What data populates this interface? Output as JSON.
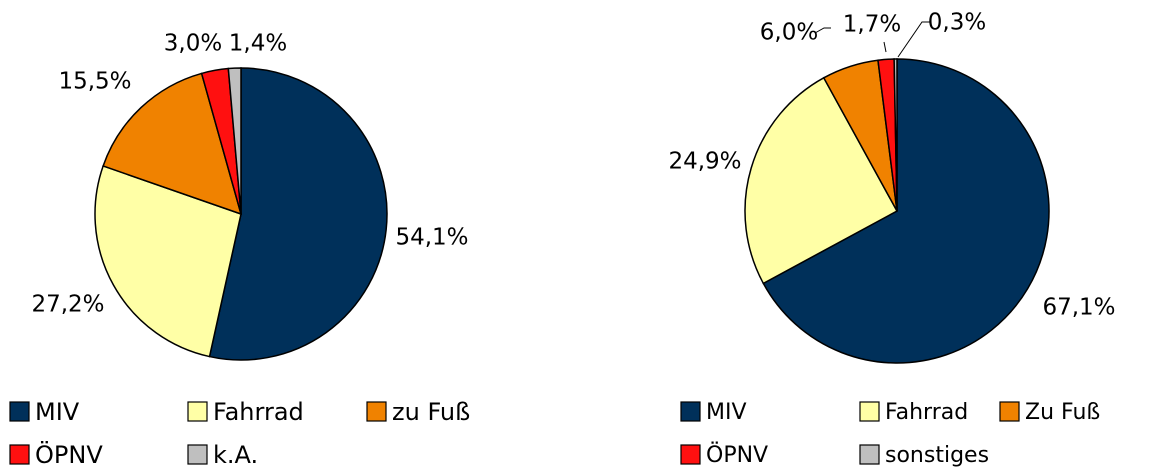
{
  "chart_data": [
    {
      "type": "pie",
      "categories": [
        "MIV",
        "Fahrrad",
        "zu Fuß",
        "ÖPNV",
        "k.A."
      ],
      "values": [
        54.1,
        27.2,
        15.5,
        3.0,
        1.4
      ],
      "value_labels": [
        "54,1%",
        "27,2%",
        "15,5%",
        "3,0%",
        "1,4%"
      ],
      "colors": [
        "#00305a",
        "#ffffa6",
        "#f08200",
        "#ff1010",
        "#bfbfbf"
      ],
      "legend": "bottom"
    },
    {
      "type": "pie",
      "categories": [
        "MIV",
        "Fahrrad",
        "Zu Fuß",
        "ÖPNV",
        "sonstiges"
      ],
      "values": [
        67.1,
        24.9,
        6.0,
        1.7,
        0.3
      ],
      "value_labels": [
        "67,1%",
        "24,9%",
        "6,0%",
        "1,7%",
        "0,3%"
      ],
      "colors": [
        "#00305a",
        "#ffffa6",
        "#f08200",
        "#ff1010",
        "#bfbfbf"
      ],
      "legend": "bottom"
    }
  ]
}
